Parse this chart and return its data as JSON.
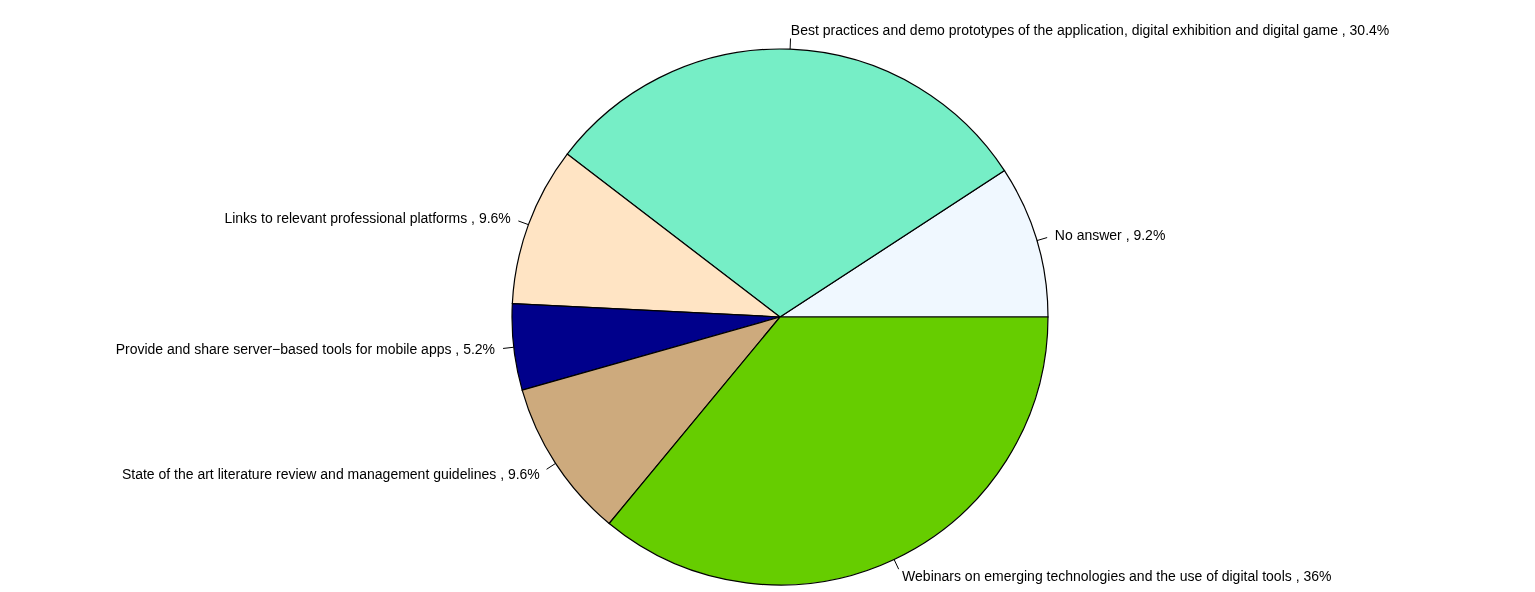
{
  "chart_data": {
    "type": "pie",
    "categories": [
      "No answer ,  9.2%",
      "Best practices and demo prototypes of the application, digital exhibition and digital game ,  30.4%",
      "Links to relevant professional platforms ,  9.6%",
      "Provide and share server−based tools for mobile apps ,  5.2%",
      "State of the art literature review and management guidelines ,  9.6%",
      "Webinars on emerging technologies and the use of digital tools ,  36%"
    ],
    "values": [
      9.2,
      30.4,
      9.6,
      5.2,
      9.6,
      36
    ],
    "colors": [
      "#f0f8ff",
      "#76eec6",
      "#ffe4c4",
      "#00008b",
      "#cdaa7d",
      "#66cd00"
    ]
  }
}
